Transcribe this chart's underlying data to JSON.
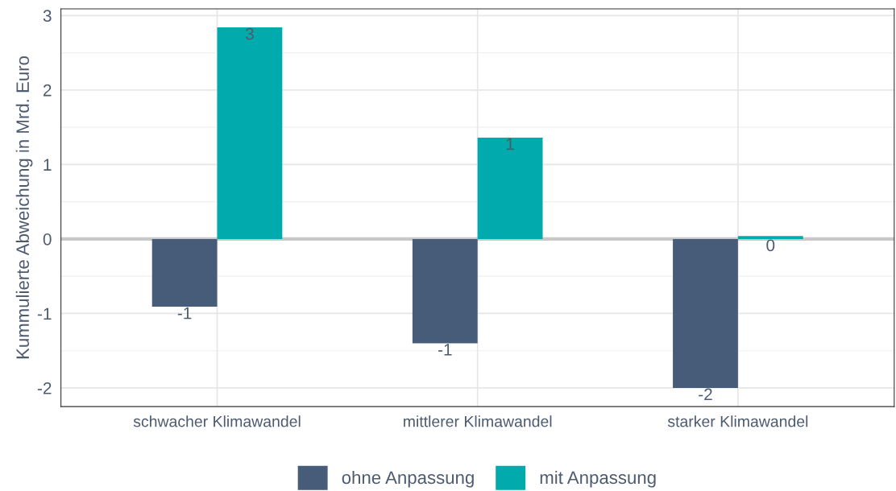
{
  "chart_data": {
    "type": "bar",
    "ylabel": "Kummulierte Abweichung in Mrd. Euro",
    "categories": [
      "schwacher Klimawandel",
      "mittlerer Klimawandel",
      "starker Klimawandel"
    ],
    "series": [
      {
        "name": "ohne Anpassung",
        "color": "#475c78",
        "values": [
          -0.91,
          -1.4,
          -2.0
        ],
        "value_labels": [
          "-1",
          "-1",
          "-2"
        ]
      },
      {
        "name": "mit Anpassung",
        "color": "#00aaad",
        "values": [
          2.84,
          1.36,
          0.04
        ],
        "value_labels": [
          "3",
          "1",
          "0"
        ]
      }
    ],
    "ylim": [
      -2.25,
      3.09
    ],
    "yticks": [
      -2,
      -1,
      0,
      1,
      2,
      3
    ],
    "grid": true,
    "legend": "bottom",
    "ref_lines": [
      {
        "axis": "y",
        "value": 0,
        "color": "#c8c8c8"
      }
    ]
  }
}
